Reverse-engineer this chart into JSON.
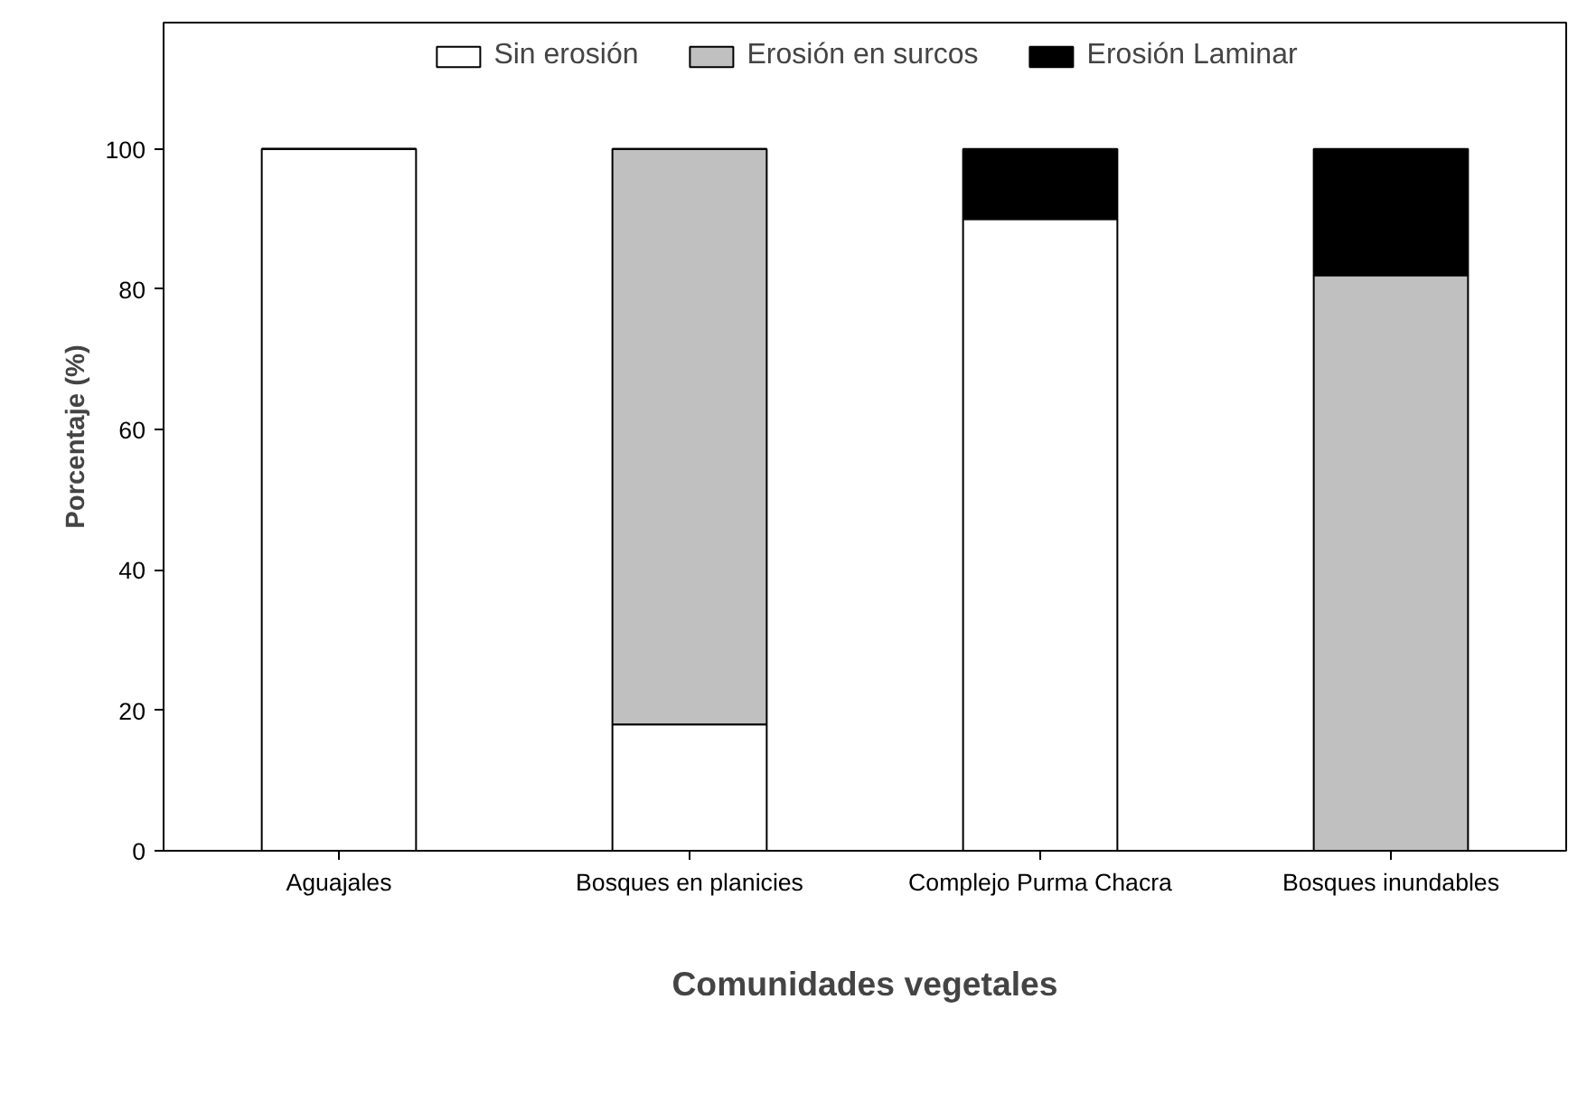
{
  "chart_data": {
    "type": "bar",
    "stacked": true,
    "xlabel": "Comunidades vegetales",
    "ylabel": "Porcentaje (%)",
    "categories": [
      "Aguajales",
      "Bosques en planicies",
      "Complejo Purma Chacra",
      "Bosques inundables"
    ],
    "series": [
      {
        "name": "Sin erosión",
        "color": "#ffffff",
        "values": [
          100,
          18,
          90,
          0
        ]
      },
      {
        "name": "Erosión en surcos",
        "color": "#c0c0c0",
        "values": [
          0,
          82,
          0,
          82
        ]
      },
      {
        "name": "Erosión Laminar",
        "color": "#000000",
        "values": [
          0,
          0,
          10,
          18
        ]
      }
    ],
    "ylim": [
      0,
      118
    ],
    "yticks": [
      0,
      20,
      40,
      60,
      80,
      100
    ],
    "grid": false,
    "legend": "top"
  }
}
